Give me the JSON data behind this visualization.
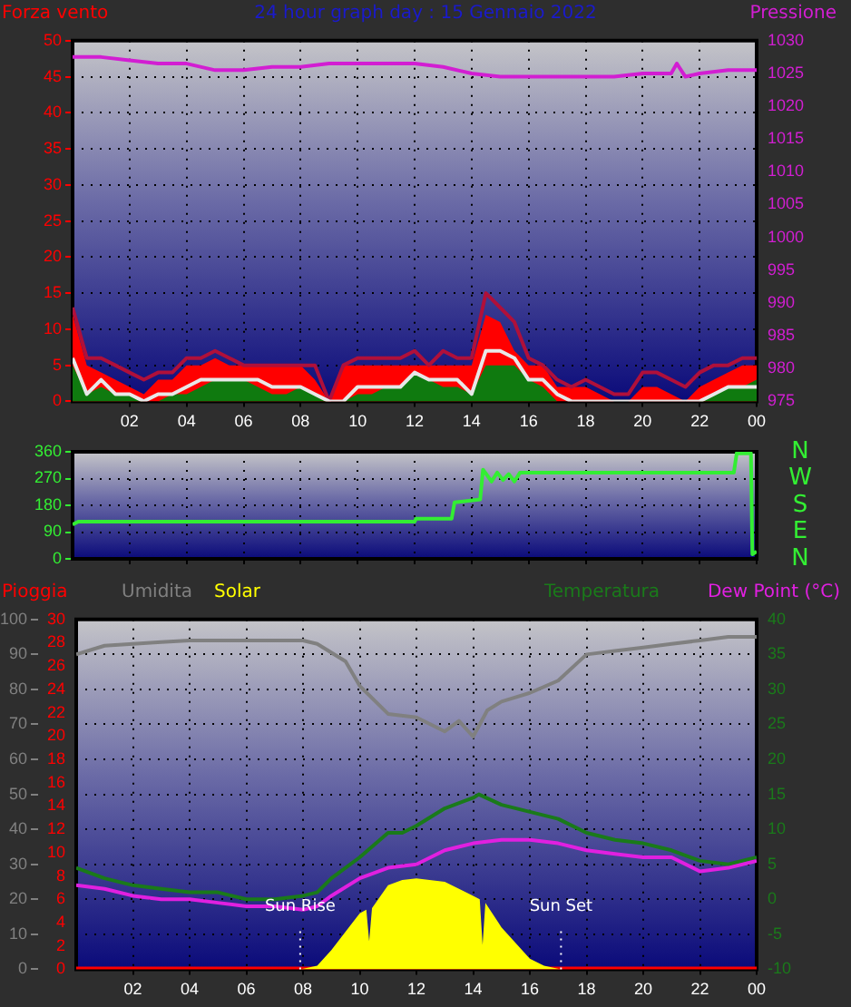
{
  "chart_data": [
    {
      "type": "line",
      "title": "24 hour graph day : 15 Gennaio 2022",
      "ylabel": "Forza vento",
      "y2label": "Pressione",
      "grid": true,
      "xlim": [
        "2022-01-15T00:00",
        "2022-01-16T00:00"
      ],
      "xticks": [
        {
          "value": "2022-01-15T02:00",
          "label": "02"
        },
        {
          "value": "2022-01-15T04:00",
          "label": "04"
        },
        {
          "value": "2022-01-15T06:00",
          "label": "06"
        },
        {
          "value": "2022-01-15T08:00",
          "label": "08"
        },
        {
          "value": "2022-01-15T10:00",
          "label": "10"
        },
        {
          "value": "2022-01-15T12:00",
          "label": "12"
        },
        {
          "value": "2022-01-15T14:00",
          "label": "14"
        },
        {
          "value": "2022-01-15T16:00",
          "label": "16"
        },
        {
          "value": "2022-01-15T18:00",
          "label": "18"
        },
        {
          "value": "2022-01-15T20:00",
          "label": "20"
        },
        {
          "value": "2022-01-15T22:00",
          "label": "22"
        },
        {
          "value": "2022-01-16T00:00",
          "label": "00"
        }
      ],
      "x": [
        "2022-01-15T00:00",
        "2022-01-15T00:30",
        "2022-01-15T01:00",
        "2022-01-15T01:30",
        "2022-01-15T02:00",
        "2022-01-15T02:30",
        "2022-01-15T03:00",
        "2022-01-15T03:30",
        "2022-01-15T04:00",
        "2022-01-15T04:30",
        "2022-01-15T05:00",
        "2022-01-15T05:30",
        "2022-01-15T06:00",
        "2022-01-15T06:30",
        "2022-01-15T07:00",
        "2022-01-15T07:30",
        "2022-01-15T08:00",
        "2022-01-15T08:30",
        "2022-01-15T09:00",
        "2022-01-15T09:30",
        "2022-01-15T10:00",
        "2022-01-15T10:30",
        "2022-01-15T11:00",
        "2022-01-15T11:30",
        "2022-01-15T12:00",
        "2022-01-15T12:30",
        "2022-01-15T13:00",
        "2022-01-15T13:30",
        "2022-01-15T14:00",
        "2022-01-15T14:30",
        "2022-01-15T15:00",
        "2022-01-15T15:30",
        "2022-01-15T16:00",
        "2022-01-15T16:30",
        "2022-01-15T17:00",
        "2022-01-15T17:30",
        "2022-01-15T18:00",
        "2022-01-15T18:30",
        "2022-01-15T19:00",
        "2022-01-15T19:30",
        "2022-01-15T20:00",
        "2022-01-15T20:30",
        "2022-01-15T21:00",
        "2022-01-15T21:30",
        "2022-01-15T22:00",
        "2022-01-15T22:30",
        "2022-01-15T23:00",
        "2022-01-15T23:30",
        "2022-01-16T00:00"
      ],
      "ylim": [
        0,
        50
      ],
      "yticks": [
        0,
        5,
        10,
        15,
        20,
        25,
        30,
        35,
        40,
        45,
        50
      ],
      "y2lim": [
        975,
        1030
      ],
      "y2ticks": [
        975,
        980,
        985,
        990,
        995,
        1000,
        1005,
        1010,
        1015,
        1020,
        1025,
        1030
      ],
      "series": [
        {
          "type": "area",
          "color": "#ff0000",
          "values": [
            12,
            5,
            4,
            3,
            2,
            1,
            3,
            3,
            5,
            5,
            6,
            5,
            5,
            5,
            5,
            5,
            5,
            3,
            0,
            5,
            5,
            5,
            5,
            5,
            5,
            5,
            5,
            5,
            5,
            12,
            11,
            7,
            5,
            5,
            2,
            2,
            2,
            1,
            0,
            0,
            2,
            2,
            1,
            0,
            2,
            3,
            4,
            5,
            5
          ]
        },
        {
          "color": "#b0103a",
          "values": [
            13,
            6,
            6,
            5,
            4,
            3,
            4,
            4,
            6,
            6,
            7,
            6,
            5,
            5,
            5,
            5,
            5,
            5,
            0,
            5,
            6,
            6,
            6,
            6,
            7,
            5,
            7,
            6,
            6,
            15,
            13,
            11,
            6,
            5,
            3,
            2,
            3,
            2,
            1,
            1,
            4,
            4,
            3,
            2,
            4,
            5,
            5,
            6,
            6
          ]
        },
        {
          "type": "area",
          "color": "#0f7a0f",
          "values": [
            5,
            1,
            2,
            1,
            1,
            0,
            0,
            1,
            1,
            2,
            3,
            3,
            3,
            2,
            1,
            1,
            2,
            1,
            0,
            0,
            1,
            1,
            2,
            2,
            4,
            3,
            2,
            2,
            1,
            5,
            5,
            5,
            3,
            2,
            0,
            0,
            0,
            0,
            0,
            0,
            0,
            0,
            0,
            0,
            0,
            1,
            2,
            2,
            3
          ]
        },
        {
          "color": "#e8e8e8",
          "values": [
            6,
            1,
            3,
            1,
            1,
            0,
            1,
            1,
            2,
            3,
            3,
            3,
            3,
            3,
            2,
            2,
            2,
            1,
            0,
            0,
            2,
            2,
            2,
            2,
            4,
            3,
            3,
            3,
            1,
            7,
            7,
            6,
            3,
            3,
            1,
            0,
            0,
            0,
            0,
            0,
            0,
            0,
            0,
            0,
            0,
            1,
            2,
            2,
            2
          ]
        },
        {
          "color": "#d21ed2",
          "axis": "y2",
          "x": [
            "2022-01-15T00:00",
            "2022-01-15T01:00",
            "2022-01-15T02:00",
            "2022-01-15T03:00",
            "2022-01-15T04:00",
            "2022-01-15T05:00",
            "2022-01-15T06:00",
            "2022-01-15T07:00",
            "2022-01-15T08:00",
            "2022-01-15T09:00",
            "2022-01-15T10:00",
            "2022-01-15T11:00",
            "2022-01-15T12:00",
            "2022-01-15T13:00",
            "2022-01-15T14:00",
            "2022-01-15T15:00",
            "2022-01-15T16:00",
            "2022-01-15T17:00",
            "2022-01-15T18:00",
            "2022-01-15T19:00",
            "2022-01-15T20:00",
            "2022-01-15T21:00",
            "2022-01-15T21:12",
            "2022-01-15T21:30",
            "2022-01-15T22:00",
            "2022-01-15T23:00",
            "2022-01-16T00:00"
          ],
          "values": [
            1027.5,
            1027.5,
            1027,
            1026.5,
            1026.5,
            1025.5,
            1025.5,
            1026,
            1026,
            1026.5,
            1026.5,
            1026.5,
            1026.5,
            1026,
            1025,
            1024.5,
            1024.5,
            1024.5,
            1024.5,
            1024.5,
            1025,
            1025,
            1026.5,
            1024.5,
            1025,
            1025.5,
            1025.5
          ]
        }
      ]
    },
    {
      "type": "line",
      "grid": true,
      "tick_labels": "y",
      "xlim": [
        "2022-01-15T00:00",
        "2022-01-16T00:00"
      ],
      "xticks": [
        "2022-01-15T02:00",
        "2022-01-15T04:00",
        "2022-01-15T06:00",
        "2022-01-15T08:00",
        "2022-01-15T10:00",
        "2022-01-15T12:00",
        "2022-01-15T14:00",
        "2022-01-15T16:00",
        "2022-01-15T18:00",
        "2022-01-15T20:00",
        "2022-01-15T22:00",
        "2022-01-16T00:00"
      ],
      "ylim": [
        0,
        360
      ],
      "yticks": [
        0,
        90,
        180,
        270,
        360
      ],
      "annotations": [
        "N",
        "W",
        "S",
        "E",
        "N"
      ],
      "series": [
        {
          "color": "#33ee33",
          "x": [
            "2022-01-15T00:00",
            "2022-01-15T00:12",
            "2022-01-15T12:00",
            "2022-01-15T12:03",
            "2022-01-15T13:18",
            "2022-01-15T13:24",
            "2022-01-15T14:18",
            "2022-01-15T14:24",
            "2022-01-15T14:42",
            "2022-01-15T14:54",
            "2022-01-15T15:06",
            "2022-01-15T15:18",
            "2022-01-15T15:30",
            "2022-01-15T15:42",
            "2022-01-15T23:12",
            "2022-01-15T23:18",
            "2022-01-15T23:48",
            "2022-01-15T23:51",
            "2022-01-16T00:00"
          ],
          "values": [
            115,
            125,
            125,
            135,
            135,
            190,
            200,
            300,
            260,
            290,
            265,
            285,
            260,
            290,
            290,
            355,
            355,
            15,
            25
          ]
        }
      ]
    },
    {
      "type": "line",
      "grid": true,
      "legend": "top",
      "xlim": [
        "2022-01-15T00:00",
        "2022-01-16T00:00"
      ],
      "xticks": [
        {
          "value": "2022-01-15T02:00",
          "label": "02"
        },
        {
          "value": "2022-01-15T04:00",
          "label": "04"
        },
        {
          "value": "2022-01-15T06:00",
          "label": "06"
        },
        {
          "value": "2022-01-15T08:00",
          "label": "08"
        },
        {
          "value": "2022-01-15T10:00",
          "label": "10"
        },
        {
          "value": "2022-01-15T12:00",
          "label": "12"
        },
        {
          "value": "2022-01-15T14:00",
          "label": "14"
        },
        {
          "value": "2022-01-15T16:00",
          "label": "16"
        },
        {
          "value": "2022-01-15T18:00",
          "label": "18"
        },
        {
          "value": "2022-01-15T20:00",
          "label": "20"
        },
        {
          "value": "2022-01-15T22:00",
          "label": "22"
        },
        {
          "value": "2022-01-16T00:00",
          "label": "00"
        }
      ],
      "ylim": [
        0,
        100
      ],
      "yticks": [
        0,
        10,
        20,
        30,
        40,
        50,
        60,
        70,
        80,
        90,
        100
      ],
      "y3lim": [
        0,
        30
      ],
      "y3ticks": [
        0,
        2,
        4,
        6,
        8,
        10,
        12,
        14,
        16,
        18,
        20,
        22,
        24,
        26,
        28,
        30
      ],
      "y2lim": [
        -10,
        40
      ],
      "y2ticks": [
        -10,
        -5,
        0,
        5,
        10,
        15,
        20,
        25,
        30,
        35,
        40
      ],
      "ref_lines": [
        {
          "axis": "x",
          "value": "2022-01-15T07:54",
          "label": "Sun Rise",
          "color": "#ffffff",
          "line_style": "dotted"
        },
        {
          "axis": "x",
          "value": "2022-01-15T17:06",
          "label": "Sun Set",
          "color": "#ffffff",
          "line_style": "dotted"
        }
      ],
      "series": [
        {
          "name": "Pioggia",
          "color": "#ff0000",
          "axis": "y3",
          "x": [
            "2022-01-15T00:00",
            "2022-01-16T00:00"
          ],
          "values": [
            0,
            0
          ]
        },
        {
          "name": "Umidita",
          "color": "#808080",
          "x": [
            "2022-01-15T00:00",
            "2022-01-15T01:00",
            "2022-01-15T02:00",
            "2022-01-15T03:00",
            "2022-01-15T04:00",
            "2022-01-15T08:00",
            "2022-01-15T08:30",
            "2022-01-15T09:30",
            "2022-01-15T10:00",
            "2022-01-15T11:00",
            "2022-01-15T12:00",
            "2022-01-15T13:00",
            "2022-01-15T13:30",
            "2022-01-15T14:00",
            "2022-01-15T14:30",
            "2022-01-15T15:00",
            "2022-01-15T16:00",
            "2022-01-15T17:00",
            "2022-01-15T18:00",
            "2022-01-15T19:00",
            "2022-01-15T20:00",
            "2022-01-15T21:00",
            "2022-01-15T22:00",
            "2022-01-15T23:00",
            "2022-01-16T00:00"
          ],
          "values": [
            90,
            92.5,
            93,
            93.5,
            94,
            94,
            93,
            88,
            81,
            73,
            72,
            68,
            71,
            66.5,
            74,
            76.5,
            79,
            82.5,
            90,
            91,
            92,
            93,
            94,
            95,
            95
          ]
        },
        {
          "name": "Solar",
          "type": "area",
          "color": "#ffff00",
          "x": [
            "2022-01-15T07:54",
            "2022-01-15T08:30",
            "2022-01-15T09:00",
            "2022-01-15T10:00",
            "2022-01-15T10:14",
            "2022-01-15T10:20",
            "2022-01-15T10:26",
            "2022-01-15T11:00",
            "2022-01-15T11:30",
            "2022-01-15T12:00",
            "2022-01-15T13:00",
            "2022-01-15T14:00",
            "2022-01-15T14:14",
            "2022-01-15T14:20",
            "2022-01-15T14:26",
            "2022-01-15T15:00",
            "2022-01-15T16:00",
            "2022-01-15T16:30",
            "2022-01-15T17:06"
          ],
          "values": [
            0,
            1,
            5.5,
            16,
            17,
            8,
            17.5,
            24,
            25.5,
            26,
            25,
            21,
            20,
            7,
            19,
            12,
            3,
            1,
            0
          ]
        },
        {
          "name": "Temperatura",
          "color": "#1a7a1a",
          "axis": "y2",
          "x": [
            "2022-01-15T00:00",
            "2022-01-15T01:00",
            "2022-01-15T02:00",
            "2022-01-15T03:00",
            "2022-01-15T04:00",
            "2022-01-15T05:00",
            "2022-01-15T06:00",
            "2022-01-15T07:00",
            "2022-01-15T08:00",
            "2022-01-15T08:30",
            "2022-01-15T09:00",
            "2022-01-15T10:00",
            "2022-01-15T11:00",
            "2022-01-15T11:30",
            "2022-01-15T12:00",
            "2022-01-15T13:00",
            "2022-01-15T14:00",
            "2022-01-15T14:12",
            "2022-01-15T15:00",
            "2022-01-15T16:00",
            "2022-01-15T17:00",
            "2022-01-15T18:00",
            "2022-01-15T19:00",
            "2022-01-15T20:00",
            "2022-01-15T21:00",
            "2022-01-15T22:00",
            "2022-01-15T23:00",
            "2022-01-16T00:00"
          ],
          "values": [
            4.5,
            3,
            2,
            1.5,
            1,
            1,
            0,
            0,
            0.5,
            1,
            3,
            6,
            9.5,
            9.5,
            10.5,
            13,
            14.5,
            15,
            13.5,
            12.5,
            11.5,
            9.5,
            8.5,
            8,
            7,
            5.5,
            5,
            6
          ]
        },
        {
          "name": "Dew Point (°C)",
          "color": "#e020e0",
          "axis": "y2",
          "x": [
            "2022-01-15T00:00",
            "2022-01-15T01:00",
            "2022-01-15T02:00",
            "2022-01-15T03:00",
            "2022-01-15T04:00",
            "2022-01-15T05:00",
            "2022-01-15T06:00",
            "2022-01-15T07:00",
            "2022-01-15T08:00",
            "2022-01-15T08:30",
            "2022-01-15T09:00",
            "2022-01-15T10:00",
            "2022-01-15T11:00",
            "2022-01-15T12:00",
            "2022-01-15T13:00",
            "2022-01-15T14:00",
            "2022-01-15T15:00",
            "2022-01-15T16:00",
            "2022-01-15T17:00",
            "2022-01-15T18:00",
            "2022-01-15T19:00",
            "2022-01-15T20:00",
            "2022-01-15T21:00",
            "2022-01-15T22:00",
            "2022-01-15T23:00",
            "2022-01-16T00:00"
          ],
          "values": [
            2,
            1.5,
            0.5,
            0,
            0,
            -0.5,
            -1,
            -1,
            -1.5,
            -1,
            0.5,
            3,
            4.5,
            5,
            7,
            8,
            8.5,
            8.5,
            8,
            7,
            6.5,
            6,
            6,
            4,
            4.5,
            5.5
          ]
        }
      ]
    }
  ]
}
